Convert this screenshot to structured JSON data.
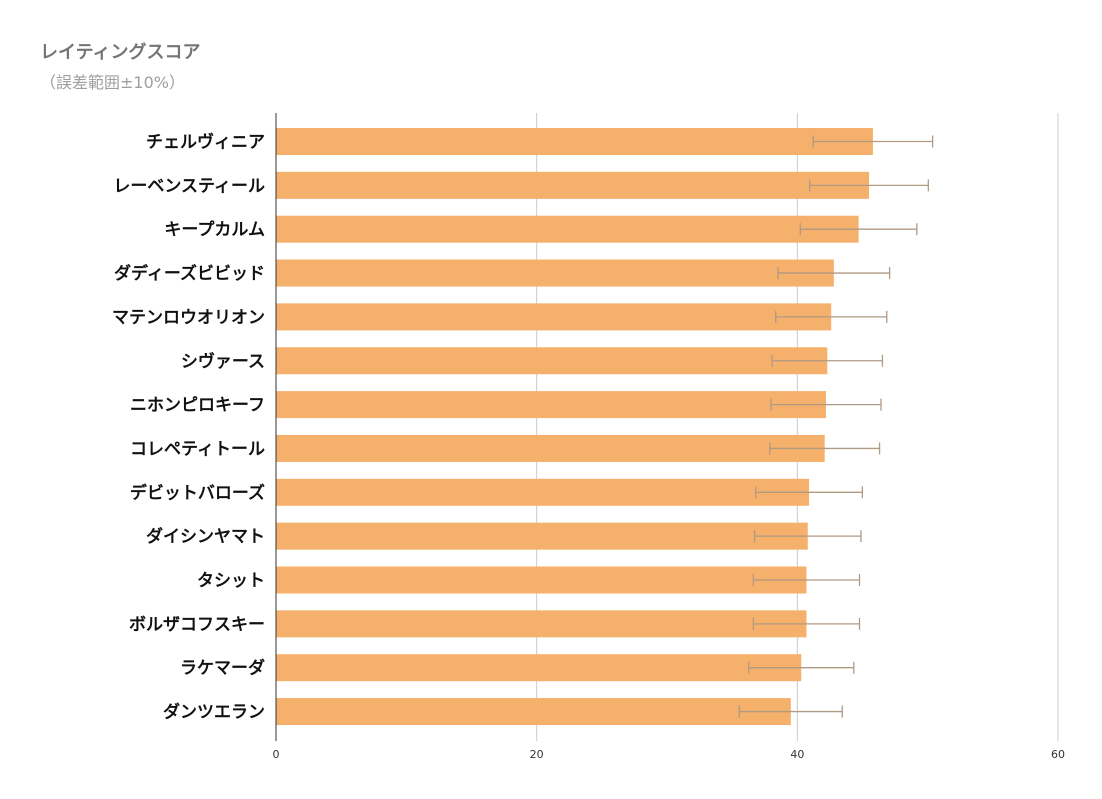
{
  "chart_data": {
    "type": "bar",
    "orientation": "horizontal",
    "title": "レイティングスコア",
    "subtitle": "（誤差範囲±10%）",
    "categories": [
      "チェルヴィニア",
      "レーベンスティール",
      "キープカルム",
      "ダディーズビビッド",
      "マテンロウオリオン",
      "シヴァース",
      "ニホンピロキーフ",
      "コレペティトール",
      "デビットバローズ",
      "ダイシンヤマト",
      "タシット",
      "ボルザコフスキー",
      "ラケマーダ",
      "ダンツエラン"
    ],
    "values": [
      45.8,
      45.5,
      44.7,
      42.8,
      42.6,
      42.3,
      42.2,
      42.1,
      40.9,
      40.8,
      40.7,
      40.7,
      40.3,
      39.5
    ],
    "error_percent": 10,
    "xlim": [
      0,
      60
    ],
    "xticks": [
      0,
      20,
      40,
      60
    ],
    "grid": true,
    "colors": {
      "bar": "#f5b06b",
      "error": "#b09a84",
      "grid": "#cccccc",
      "axis": "#333333"
    }
  }
}
